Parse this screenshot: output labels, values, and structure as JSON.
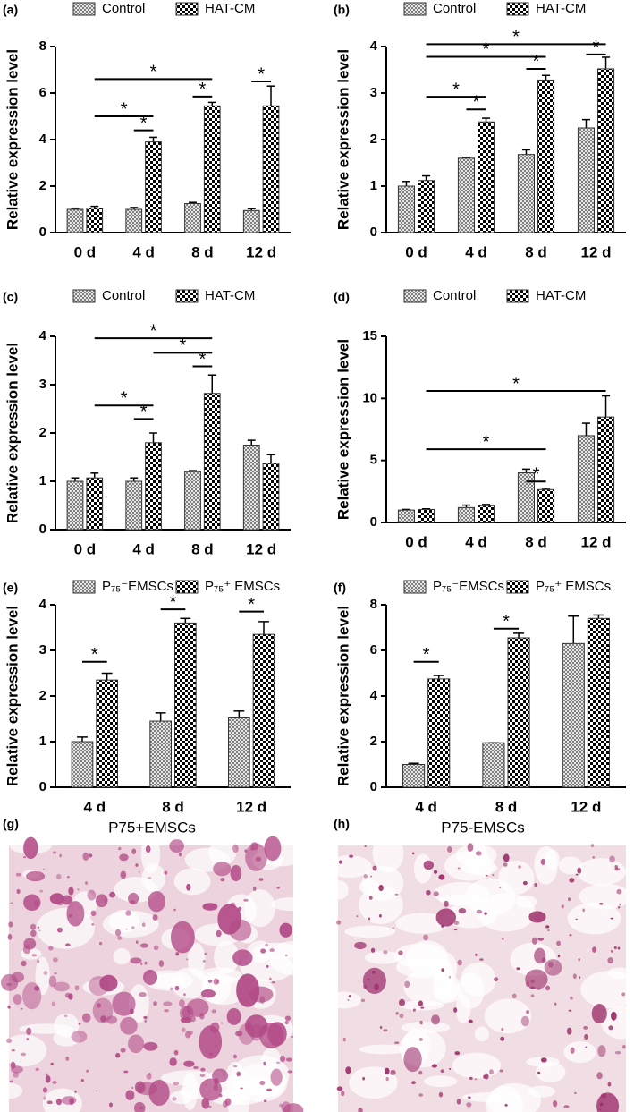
{
  "chart_data": [
    {
      "type": "bar",
      "label": "(a)",
      "ylabel": "Relative expression level",
      "categories": [
        "0 d",
        "4 d",
        "8 d",
        "12 d"
      ],
      "ylim": [
        0,
        8
      ],
      "yticks": [
        0,
        2,
        4,
        6,
        8
      ],
      "series": [
        {
          "name": "Control",
          "color": "#808080",
          "values": [
            1.0,
            1.0,
            1.25,
            0.95
          ],
          "errors": [
            0.05,
            0.08,
            0.05,
            0.08
          ]
        },
        {
          "name": "HAT-CM",
          "color": "#000000",
          "values": [
            1.05,
            3.9,
            5.45,
            5.45
          ],
          "errors": [
            0.08,
            0.2,
            0.15,
            0.85
          ]
        }
      ],
      "annotations": [
        {
          "text": "*",
          "from": [
            0,
            1
          ],
          "to": [
            1,
            1
          ],
          "y": 4.4
        },
        {
          "text": "*",
          "from": [
            1,
            0
          ],
          "to": [
            1,
            1
          ],
          "y": 5.0
        },
        {
          "text": "*",
          "from": [
            0,
            2
          ],
          "to": [
            1,
            2
          ],
          "y": 5.85
        },
        {
          "text": "*",
          "from": [
            1,
            0
          ],
          "to": [
            1,
            2
          ],
          "y": 6.6
        },
        {
          "text": "*",
          "from": [
            0,
            3
          ],
          "to": [
            1,
            3
          ],
          "y": 6.5
        }
      ]
    },
    {
      "type": "bar",
      "label": "(b)",
      "ylabel": "Relative expression level",
      "categories": [
        "0 d",
        "4 d",
        "8 d",
        "12 d"
      ],
      "ylim": [
        0,
        4
      ],
      "yticks": [
        0,
        1,
        2,
        3,
        4
      ],
      "series": [
        {
          "name": "Control",
          "color": "#808080",
          "values": [
            1.0,
            1.6,
            1.68,
            2.25
          ],
          "errors": [
            0.1,
            0.02,
            0.1,
            0.18
          ]
        },
        {
          "name": "HAT-CM",
          "color": "#000000",
          "values": [
            1.12,
            2.38,
            3.28,
            3.52
          ],
          "errors": [
            0.1,
            0.08,
            0.1,
            0.25
          ]
        }
      ],
      "annotations": [
        {
          "text": "*",
          "from": [
            0,
            1
          ],
          "to": [
            1,
            1
          ],
          "y": 2.65
        },
        {
          "text": "*",
          "from": [
            1,
            0
          ],
          "to": [
            1,
            1
          ],
          "y": 2.92
        },
        {
          "text": "*",
          "from": [
            0,
            2
          ],
          "to": [
            1,
            2
          ],
          "y": 3.52
        },
        {
          "text": "*",
          "from": [
            1,
            0
          ],
          "to": [
            1,
            2
          ],
          "y": 3.78
        },
        {
          "text": "*",
          "from": [
            0,
            3
          ],
          "to": [
            1,
            3
          ],
          "y": 3.83
        },
        {
          "text": "*",
          "from": [
            1,
            0
          ],
          "to": [
            1,
            3
          ],
          "y": 4.05
        }
      ]
    },
    {
      "type": "bar",
      "label": "(c)",
      "ylabel": "Relative expression level",
      "categories": [
        "0 d",
        "4 d",
        "8 d",
        "12 d"
      ],
      "ylim": [
        0,
        4
      ],
      "yticks": [
        0,
        1,
        2,
        3,
        4
      ],
      "series": [
        {
          "name": "Control",
          "color": "#808080",
          "values": [
            1.0,
            1.0,
            1.2,
            1.75
          ],
          "errors": [
            0.07,
            0.07,
            0.02,
            0.1
          ]
        },
        {
          "name": "HAT-CM",
          "color": "#000000",
          "values": [
            1.07,
            1.8,
            2.82,
            1.37
          ],
          "errors": [
            0.1,
            0.2,
            0.38,
            0.18
          ]
        }
      ],
      "annotations": [
        {
          "text": "*",
          "from": [
            0,
            1
          ],
          "to": [
            1,
            1
          ],
          "y": 2.29
        },
        {
          "text": "*",
          "from": [
            1,
            0
          ],
          "to": [
            1,
            1
          ],
          "y": 2.57
        },
        {
          "text": "*",
          "from": [
            0,
            2
          ],
          "to": [
            1,
            2
          ],
          "y": 3.38
        },
        {
          "text": "*",
          "from": [
            1,
            1
          ],
          "to": [
            1,
            2
          ],
          "y": 3.66
        },
        {
          "text": "*",
          "from": [
            1,
            0
          ],
          "to": [
            1,
            2
          ],
          "y": 3.96
        }
      ]
    },
    {
      "type": "bar",
      "label": "(d)",
      "ylabel": "Relative expression level",
      "categories": [
        "0 d",
        "4 d",
        "8 d",
        "12 d"
      ],
      "ylim": [
        0,
        15
      ],
      "yticks": [
        0,
        5,
        10,
        15
      ],
      "series": [
        {
          "name": "Control",
          "color": "#808080",
          "values": [
            1.0,
            1.2,
            4.0,
            7.0
          ],
          "errors": [
            0.05,
            0.2,
            0.3,
            1.0
          ]
        },
        {
          "name": "HAT-CM",
          "color": "#000000",
          "values": [
            1.05,
            1.35,
            2.65,
            8.5
          ],
          "errors": [
            0.05,
            0.1,
            0.1,
            1.7
          ]
        }
      ],
      "annotations": [
        {
          "text": "*",
          "from": [
            0,
            2
          ],
          "to": [
            1,
            2
          ],
          "y": 3.3
        },
        {
          "text": "*",
          "from": [
            1,
            0
          ],
          "to": [
            1,
            2
          ],
          "y": 5.9
        },
        {
          "text": "*",
          "from": [
            1,
            0
          ],
          "to": [
            1,
            3
          ],
          "y": 10.6
        }
      ]
    },
    {
      "type": "bar",
      "label": "(e)",
      "ylabel": "Relative expression level",
      "categories": [
        "4 d",
        "8 d",
        "12 d"
      ],
      "ylim": [
        0,
        4
      ],
      "yticks": [
        0,
        1,
        2,
        3,
        4
      ],
      "series": [
        {
          "name": "P₇₅⁻EMSCs",
          "color": "#808080",
          "values": [
            1.0,
            1.45,
            1.52
          ],
          "errors": [
            0.1,
            0.18,
            0.15
          ]
        },
        {
          "name": "P₇₅⁺ EMSCs",
          "color": "#000000",
          "values": [
            2.35,
            3.6,
            3.35
          ],
          "errors": [
            0.15,
            0.1,
            0.28
          ]
        }
      ],
      "annotations": [
        {
          "text": "*",
          "from": [
            0,
            0
          ],
          "to": [
            1,
            0
          ],
          "y": 2.75
        },
        {
          "text": "*",
          "from": [
            0,
            1
          ],
          "to": [
            1,
            1
          ],
          "y": 3.9
        },
        {
          "text": "*",
          "from": [
            0,
            2
          ],
          "to": [
            1,
            2
          ],
          "y": 3.85
        }
      ]
    },
    {
      "type": "bar",
      "label": "(f)",
      "ylabel": "Relative expression level",
      "categories": [
        "4 d",
        "8 d",
        "12 d"
      ],
      "ylim": [
        0,
        8
      ],
      "yticks": [
        0,
        2,
        4,
        6,
        8
      ],
      "series": [
        {
          "name": "P₇₅⁻EMSCs",
          "color": "#808080",
          "values": [
            1.0,
            1.95,
            6.3
          ],
          "errors": [
            0.05,
            0,
            1.2
          ]
        },
        {
          "name": "P₇₅⁺ EMSCs",
          "color": "#000000",
          "values": [
            4.75,
            6.55,
            7.4
          ],
          "errors": [
            0.15,
            0.2,
            0.15
          ]
        }
      ],
      "annotations": [
        {
          "text": "*",
          "from": [
            0,
            0
          ],
          "to": [
            1,
            0
          ],
          "y": 5.5
        },
        {
          "text": "*",
          "from": [
            0,
            1
          ],
          "to": [
            1,
            1
          ],
          "y": 6.95
        }
      ]
    }
  ],
  "images": [
    {
      "label": "(g)",
      "title": "P75+EMSCs"
    },
    {
      "label": "(h)",
      "title": "P75-EMSCs"
    }
  ]
}
